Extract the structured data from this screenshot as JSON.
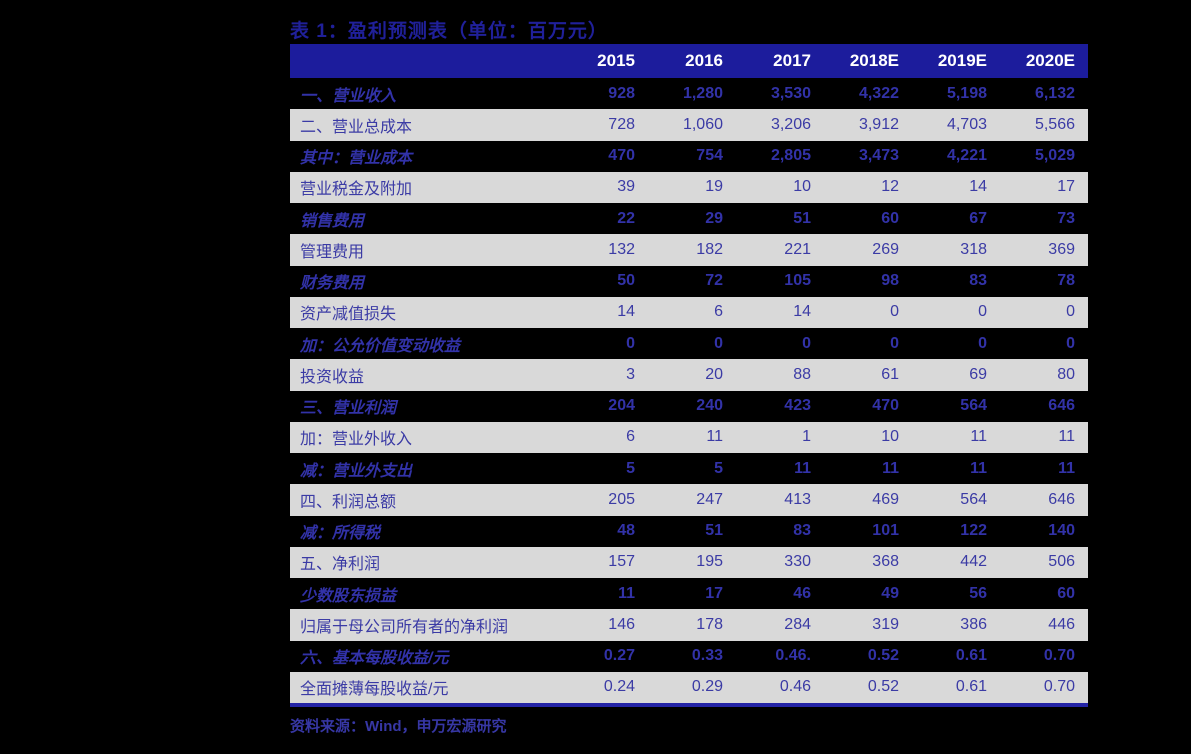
{
  "title": "表 1：盈利预测表（单位：百万元）",
  "table": {
    "columns": [
      "2015",
      "2016",
      "2017",
      "2018E",
      "2019E",
      "2020E"
    ],
    "rows": [
      {
        "label": "一、营业收入",
        "style": "dark",
        "values": [
          "928",
          "1,280",
          "3,530",
          "4,322",
          "5,198",
          "6,132"
        ]
      },
      {
        "label": "二、营业总成本",
        "style": "light",
        "values": [
          "728",
          "1,060",
          "3,206",
          "3,912",
          "4,703",
          "5,566"
        ]
      },
      {
        "label": "其中：营业成本",
        "style": "dark",
        "values": [
          "470",
          "754",
          "2,805",
          "3,473",
          "4,221",
          "5,029"
        ]
      },
      {
        "label": "营业税金及附加",
        "style": "light",
        "values": [
          "39",
          "19",
          "10",
          "12",
          "14",
          "17"
        ]
      },
      {
        "label": "销售费用",
        "style": "dark",
        "values": [
          "22",
          "29",
          "51",
          "60",
          "67",
          "73"
        ]
      },
      {
        "label": "管理费用",
        "style": "light",
        "values": [
          "132",
          "182",
          "221",
          "269",
          "318",
          "369"
        ]
      },
      {
        "label": "财务费用",
        "style": "dark",
        "values": [
          "50",
          "72",
          "105",
          "98",
          "83",
          "78"
        ]
      },
      {
        "label": "资产减值损失",
        "style": "light",
        "values": [
          "14",
          "6",
          "14",
          "0",
          "0",
          "0"
        ]
      },
      {
        "label": "加：公允价值变动收益",
        "style": "dark",
        "values": [
          "0",
          "0",
          "0",
          "0",
          "0",
          "0"
        ]
      },
      {
        "label": "投资收益",
        "style": "light",
        "values": [
          "3",
          "20",
          "88",
          "61",
          "69",
          "80"
        ]
      },
      {
        "label": "三、营业利润",
        "style": "dark",
        "values": [
          "204",
          "240",
          "423",
          "470",
          "564",
          "646"
        ]
      },
      {
        "label": "加：营业外收入",
        "style": "light",
        "values": [
          "6",
          "11",
          "1",
          "10",
          "11",
          "11"
        ]
      },
      {
        "label": "减：营业外支出",
        "style": "dark",
        "values": [
          "5",
          "5",
          "11",
          "11",
          "11",
          "11"
        ]
      },
      {
        "label": "四、利润总额",
        "style": "light",
        "values": [
          "205",
          "247",
          "413",
          "469",
          "564",
          "646"
        ]
      },
      {
        "label": "减：所得税",
        "style": "dark",
        "values": [
          "48",
          "51",
          "83",
          "101",
          "122",
          "140"
        ]
      },
      {
        "label": "五、净利润",
        "style": "light",
        "values": [
          "157",
          "195",
          "330",
          "368",
          "442",
          "506"
        ]
      },
      {
        "label": "少数股东损益",
        "style": "dark",
        "values": [
          "11",
          "17",
          "46",
          "49",
          "56",
          "60"
        ]
      },
      {
        "label": "归属于母公司所有者的净利润",
        "style": "light",
        "values": [
          "146",
          "178",
          "284",
          "319",
          "386",
          "446"
        ]
      },
      {
        "label": "六、基本每股收益/元",
        "style": "dark",
        "values": [
          "0.27",
          "0.33",
          "0.46.",
          "0.52",
          "0.61",
          "0.70"
        ]
      },
      {
        "label": "全面摊薄每股收益/元",
        "style": "light",
        "values": [
          "0.24",
          "0.29",
          "0.46",
          "0.52",
          "0.61",
          "0.70"
        ]
      }
    ]
  },
  "footer": {
    "source": "资料来源：Wind，申万宏源研究"
  },
  "colors": {
    "page_background": "#000000",
    "header_background": "#1c1c9c",
    "light_row_background": "#d9d9d9",
    "dark_row_background": "#000000",
    "header_text": "#ffffff",
    "data_text_blue": "#3b3ba5",
    "title_blue": "#20209a",
    "bottom_rule_navy": "#2424a6"
  }
}
